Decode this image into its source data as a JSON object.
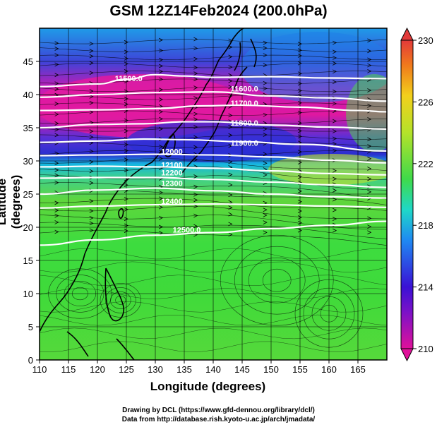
{
  "title": "GSM 12Z14Feb2024 (200.0hPa)",
  "xlabel": "Longitude (degrees)",
  "ylabel": "Latitude (degrees)",
  "credit_line1": "Drawing by DCL (https://www.gfd-dennou.org/library/dcl/)",
  "credit_line2": "Data from http://database.rish.kyoto-u.ac.jp/arch/jmadata/",
  "chart_data": {
    "type": "heatmap",
    "title": "GSM 12Z14Feb2024 (200.0hPa)",
    "xlabel": "Longitude (degrees)",
    "ylabel": "Latitude (degrees)",
    "xlim": [
      110,
      170
    ],
    "ylim": [
      0,
      50
    ],
    "x_ticks": [
      "110",
      "115",
      "120",
      "125",
      "130",
      "135",
      "140",
      "145",
      "150",
      "155",
      "160",
      "165"
    ],
    "y_ticks": [
      "0",
      "5",
      "10",
      "15",
      "20",
      "25",
      "30",
      "35",
      "40",
      "45"
    ],
    "colorbar": {
      "min": 210,
      "max": 230,
      "ticks": [
        "210",
        "214",
        "218",
        "222",
        "226",
        "230"
      ],
      "colors": [
        "#e0119a",
        "#3a11d5",
        "#1f88f2",
        "#1fd8c8",
        "#59d93a",
        "#b4e22a",
        "#f2d01c",
        "#f0791c",
        "#e23a3a"
      ]
    },
    "contour_labels": [
      {
        "text": "11500.0",
        "lon": 123,
        "lat": 42
      },
      {
        "text": "11600.0",
        "lon": 143,
        "lat": 40.5
      },
      {
        "text": "11700.0",
        "lon": 143,
        "lat": 38.3
      },
      {
        "text": "11800.0",
        "lon": 143,
        "lat": 35.3
      },
      {
        "text": "11900.0",
        "lon": 143,
        "lat": 32.3
      },
      {
        "text": "12000",
        "lon": 131,
        "lat": 31
      },
      {
        "text": "12100",
        "lon": 131,
        "lat": 29
      },
      {
        "text": "12200",
        "lon": 131,
        "lat": 27.8
      },
      {
        "text": "12300",
        "lon": 131,
        "lat": 26.2
      },
      {
        "text": "12400",
        "lon": 131,
        "lat": 23.5
      },
      {
        "text": "12500.0",
        "lon": 133,
        "lat": 19.2
      }
    ],
    "contours": [
      {
        "level": "11500",
        "points": [
          [
            110,
            41.2
          ],
          [
            120,
            41.6
          ],
          [
            125,
            42.3
          ],
          [
            130,
            43
          ],
          [
            135,
            42.8
          ],
          [
            140,
            42.6
          ],
          [
            150,
            42.7
          ],
          [
            160,
            42.5
          ],
          [
            170,
            42.4
          ]
        ]
      },
      {
        "level": "11600",
        "points": [
          [
            110,
            39.6
          ],
          [
            120,
            40
          ],
          [
            130,
            40.3
          ],
          [
            140,
            40.4
          ],
          [
            150,
            39.8
          ],
          [
            160,
            39.5
          ],
          [
            170,
            39
          ]
        ]
      },
      {
        "level": "11700",
        "points": [
          [
            110,
            37.6
          ],
          [
            120,
            37.7
          ],
          [
            130,
            37.9
          ],
          [
            138,
            38.3
          ],
          [
            145,
            38.4
          ],
          [
            155,
            38.1
          ],
          [
            165,
            37.6
          ],
          [
            170,
            37.4
          ]
        ]
      },
      {
        "level": "11800",
        "points": [
          [
            110,
            35
          ],
          [
            120,
            35.5
          ],
          [
            128,
            35.6
          ],
          [
            135,
            35.9
          ],
          [
            140,
            35.9
          ],
          [
            150,
            35.4
          ],
          [
            160,
            35.1
          ],
          [
            170,
            34.8
          ]
        ]
      },
      {
        "level": "11900",
        "points": [
          [
            110,
            32.8
          ],
          [
            120,
            33
          ],
          [
            128,
            33.3
          ],
          [
            135,
            33.2
          ],
          [
            145,
            32.9
          ],
          [
            155,
            32.5
          ],
          [
            170,
            31.5
          ]
        ]
      },
      {
        "level": "12000",
        "points": [
          [
            110,
            30.8
          ],
          [
            120,
            30.9
          ],
          [
            130,
            31
          ],
          [
            140,
            30.9
          ],
          [
            150,
            30.6
          ],
          [
            160,
            30.1
          ],
          [
            170,
            29.7
          ]
        ]
      },
      {
        "level": "12100",
        "points": [
          [
            110,
            29.1
          ],
          [
            120,
            29.2
          ],
          [
            130,
            29.1
          ],
          [
            140,
            28.9
          ],
          [
            150,
            28.5
          ],
          [
            160,
            28.1
          ],
          [
            170,
            27.9
          ]
        ]
      },
      {
        "level": "12200",
        "points": [
          [
            110,
            27.4
          ],
          [
            120,
            27.5
          ],
          [
            130,
            27.5
          ],
          [
            140,
            27.2
          ],
          [
            150,
            26.8
          ],
          [
            160,
            26.4
          ],
          [
            170,
            26
          ]
        ]
      },
      {
        "level": "12300",
        "points": [
          [
            110,
            25
          ],
          [
            120,
            25.6
          ],
          [
            130,
            25.9
          ],
          [
            140,
            25.5
          ],
          [
            150,
            25
          ],
          [
            160,
            24.6
          ],
          [
            170,
            24.4
          ]
        ]
      },
      {
        "level": "12400",
        "points": [
          [
            110,
            22.9
          ],
          [
            120,
            23.2
          ],
          [
            130,
            23.4
          ],
          [
            140,
            23.5
          ],
          [
            150,
            23.4
          ],
          [
            160,
            23.2
          ],
          [
            170,
            23
          ]
        ]
      },
      {
        "level": "12500",
        "points": [
          [
            110,
            17.3
          ],
          [
            120,
            18.1
          ],
          [
            130,
            18.8
          ],
          [
            140,
            19.2
          ],
          [
            150,
            19.8
          ],
          [
            160,
            20.3
          ],
          [
            170,
            20.9
          ]
        ]
      }
    ],
    "grid": true,
    "legend": "colorbar-right"
  }
}
